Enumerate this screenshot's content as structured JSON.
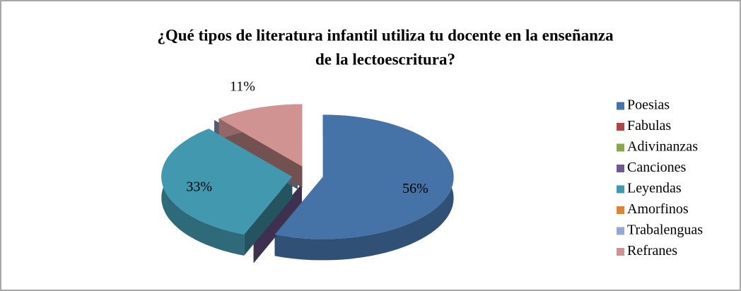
{
  "chart_data": {
    "type": "pie3d",
    "title_lines": [
      "¿Qué tipos de literatura infantil utiliza tu docente en la enseñanza",
      "de la lectoescritura?"
    ],
    "categories": [
      "Poesias",
      "Fabulas",
      "Adivinanzas",
      "Canciones",
      "Leyendas",
      "Amorfinos",
      "Trabalenguas",
      "Refranes"
    ],
    "values": [
      56,
      0,
      0,
      0,
      33,
      0,
      0,
      11
    ],
    "value_labels": [
      "56%",
      null,
      null,
      null,
      "33%",
      null,
      null,
      "11%"
    ],
    "colors": [
      "#4572A7",
      "#AA4643",
      "#89A54E",
      "#71588F",
      "#4198AF",
      "#DB843D",
      "#93A9CF",
      "#D19392"
    ],
    "legend": "right"
  }
}
